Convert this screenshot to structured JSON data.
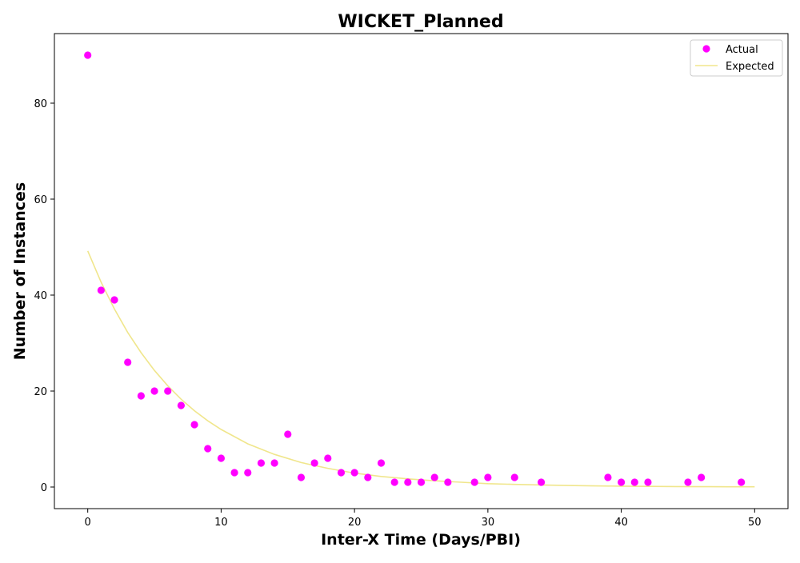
{
  "chart_data": {
    "type": "scatter",
    "title": "WICKET_Planned",
    "xlabel": "Inter-X Time (Days/PBI)",
    "ylabel": "Number of Instances",
    "xlim": [
      -2.5,
      52.5
    ],
    "ylim": [
      -4.5,
      94.5
    ],
    "xticks": [
      0,
      10,
      20,
      30,
      40,
      50
    ],
    "yticks": [
      0,
      20,
      40,
      60,
      80
    ],
    "grid": false,
    "legend_position": "upper right",
    "series": [
      {
        "name": "Actual",
        "kind": "scatter",
        "color": "#ff00ff",
        "points": [
          [
            0,
            90
          ],
          [
            1,
            41
          ],
          [
            2,
            39
          ],
          [
            3,
            26
          ],
          [
            4,
            19
          ],
          [
            5,
            20
          ],
          [
            6,
            20
          ],
          [
            7,
            17
          ],
          [
            8,
            13
          ],
          [
            9,
            8
          ],
          [
            10,
            6
          ],
          [
            11,
            3
          ],
          [
            12,
            3
          ],
          [
            13,
            5
          ],
          [
            14,
            5
          ],
          [
            15,
            11
          ],
          [
            16,
            2
          ],
          [
            17,
            5
          ],
          [
            18,
            6
          ],
          [
            19,
            3
          ],
          [
            20,
            3
          ],
          [
            21,
            2
          ],
          [
            22,
            5
          ],
          [
            23,
            1
          ],
          [
            24,
            1
          ],
          [
            25,
            1
          ],
          [
            26,
            2
          ],
          [
            27,
            1
          ],
          [
            29,
            1
          ],
          [
            30,
            2
          ],
          [
            32,
            2
          ],
          [
            34,
            1
          ],
          [
            39,
            2
          ],
          [
            40,
            1
          ],
          [
            41,
            1
          ],
          [
            42,
            1
          ],
          [
            45,
            1
          ],
          [
            46,
            2
          ],
          [
            49,
            1
          ]
        ]
      },
      {
        "name": "Expected",
        "kind": "line",
        "color": "#f0e68c",
        "points": [
          [
            0,
            49.2
          ],
          [
            1,
            42.7
          ],
          [
            2,
            37.1
          ],
          [
            3,
            32.2
          ],
          [
            4,
            28.0
          ],
          [
            5,
            24.3
          ],
          [
            6,
            21.1
          ],
          [
            7,
            18.3
          ],
          [
            8,
            15.9
          ],
          [
            9,
            13.8
          ],
          [
            10,
            12.0
          ],
          [
            12,
            9.0
          ],
          [
            14,
            6.8
          ],
          [
            16,
            5.1
          ],
          [
            18,
            3.9
          ],
          [
            20,
            2.9
          ],
          [
            22,
            2.2
          ],
          [
            24,
            1.7
          ],
          [
            26,
            1.3
          ],
          [
            28,
            1.0
          ],
          [
            30,
            0.7
          ],
          [
            32,
            0.55
          ],
          [
            34,
            0.42
          ],
          [
            36,
            0.32
          ],
          [
            38,
            0.24
          ],
          [
            40,
            0.18
          ],
          [
            42,
            0.14
          ],
          [
            44,
            0.1
          ],
          [
            46,
            0.08
          ],
          [
            48,
            0.06
          ],
          [
            50,
            0.05
          ]
        ]
      }
    ]
  }
}
